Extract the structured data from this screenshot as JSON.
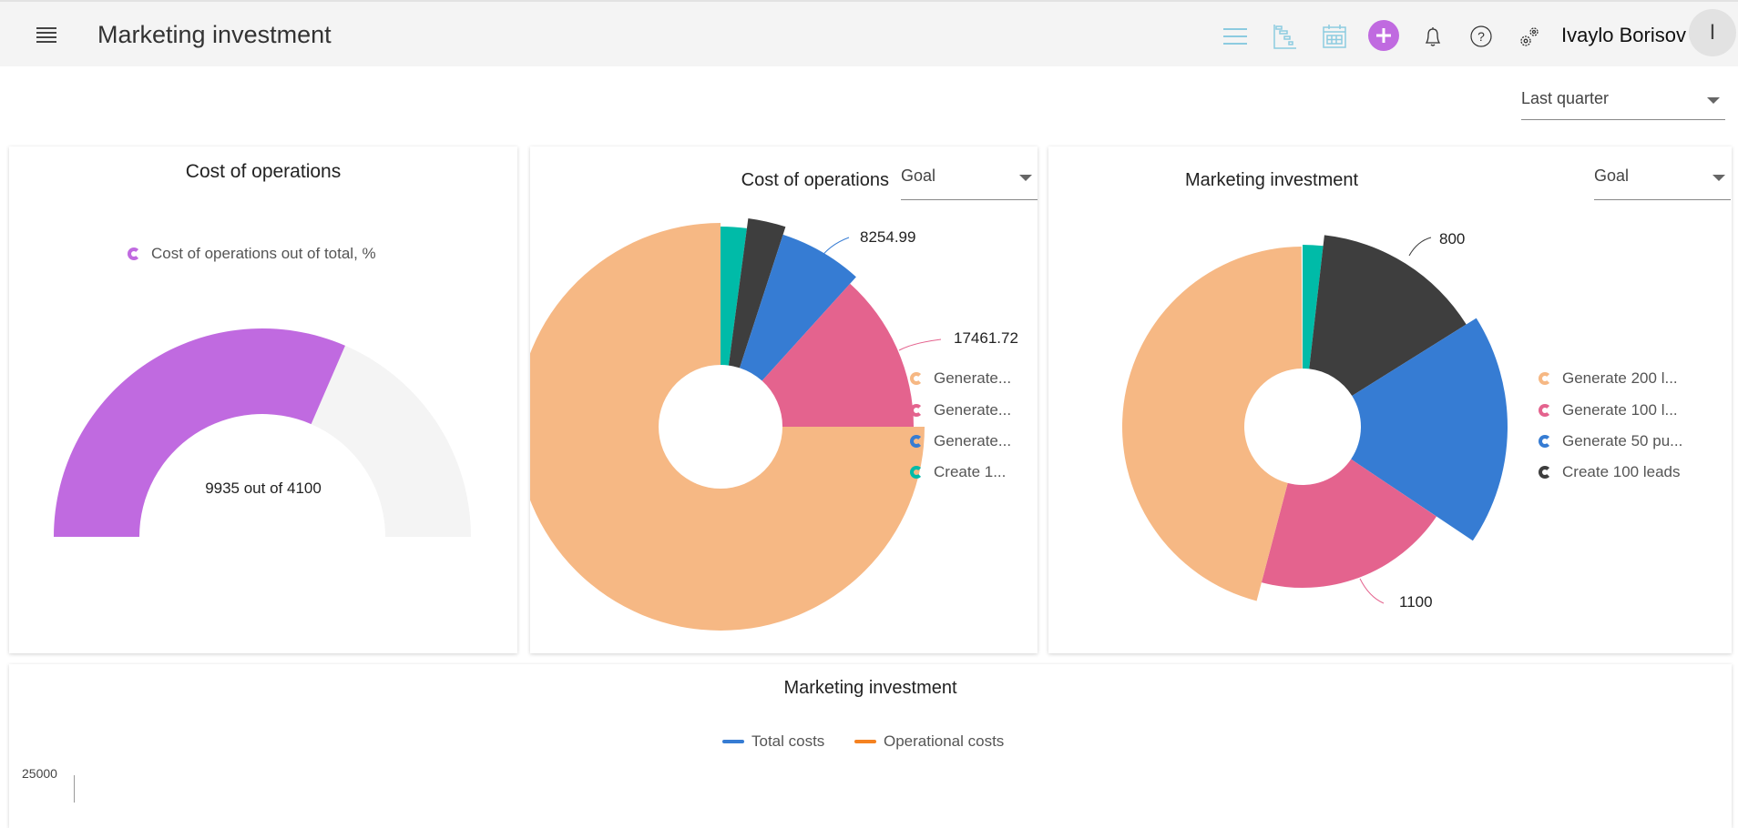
{
  "header": {
    "title": "Marketing investment",
    "user_name": "Ivaylo Borisov",
    "avatar_initial": "I",
    "icons": [
      "menu-icon",
      "list-view-icon",
      "gantt-icon",
      "calendar-icon",
      "add-icon",
      "bell-icon",
      "help-icon",
      "settings-icon"
    ],
    "accent": "#c06ae0"
  },
  "period_select": {
    "value": "Last quarter"
  },
  "chart_data": [
    {
      "type": "gauge",
      "title": "Cost of operations",
      "legend": [
        "Cost of operations out of total, %"
      ],
      "center_text": "9935 out of 4100",
      "fill_fraction": 0.63,
      "colors": {
        "fill": "#c06ae0",
        "track": "#f4f4f4"
      }
    },
    {
      "type": "pie",
      "title": "Cost of operations",
      "select": "Goal",
      "slices": [
        {
          "name": "Create 1...",
          "share_pct": 2.1,
          "color": "#00bba8"
        },
        {
          "name": "",
          "share_pct": 2.9,
          "color": "#3e3e3e"
        },
        {
          "name": "Generate...",
          "share_pct": 6.7,
          "color": "#367cd3",
          "label": "8254.99"
        },
        {
          "name": "Generate...",
          "share_pct": 13.3,
          "color": "#e4638e",
          "label": "17461.72"
        },
        {
          "name": "Generate...",
          "share_pct": 75.0,
          "color": "#f6b884"
        }
      ],
      "legend": [
        "Generate...",
        "Generate...",
        "Generate...",
        "Create 1..."
      ]
    },
    {
      "type": "pie",
      "title": "Marketing investment",
      "select": "Goal",
      "slices": [
        {
          "name": "",
          "share_pct": 1.8,
          "color": "#00bba8"
        },
        {
          "name": "Create 100 leads",
          "share_pct": 14.3,
          "color": "#3e3e3e",
          "label": "800"
        },
        {
          "name": "Generate 50 pu...",
          "share_pct": 18.3,
          "color": "#367cd3"
        },
        {
          "name": "Generate 100 l...",
          "share_pct": 19.7,
          "color": "#e4638e",
          "label": "1100"
        },
        {
          "name": "Generate 200 l...",
          "share_pct": 45.8,
          "color": "#f6b884"
        }
      ],
      "legend": [
        "Generate 200 l...",
        "Generate 100 l...",
        "Generate 50 pu...",
        "Create 100 leads"
      ]
    },
    {
      "type": "line",
      "title": "Marketing investment",
      "legend": [
        {
          "name": "Total costs",
          "color": "#367cd3"
        },
        {
          "name": "Operational costs",
          "color": "#f58220"
        }
      ],
      "y_ticks": [
        "25000"
      ]
    }
  ]
}
